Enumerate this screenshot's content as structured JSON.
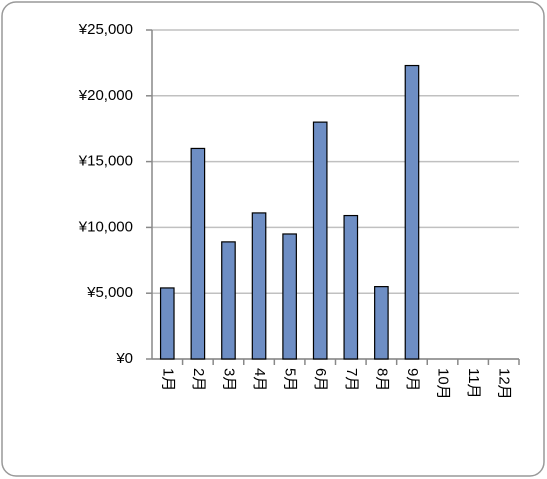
{
  "chart_data": {
    "type": "bar",
    "categories": [
      "1月",
      "2月",
      "3月",
      "4月",
      "5月",
      "6月",
      "7月",
      "8月",
      "9月",
      "10月",
      "11月",
      "12月"
    ],
    "values": [
      5400,
      16000,
      8900,
      11100,
      9500,
      18000,
      10900,
      5500,
      22300,
      null,
      null,
      null
    ],
    "color": "#6e8ec4",
    "ylim": [
      0,
      25000
    ],
    "yticks": [
      {
        "value": 0,
        "label": "¥0"
      },
      {
        "value": 5000,
        "label": "¥5,000"
      },
      {
        "value": 10000,
        "label": "¥10,000"
      },
      {
        "value": 15000,
        "label": "¥15,000"
      },
      {
        "value": 20000,
        "label": "¥20,000"
      },
      {
        "value": 25000,
        "label": "¥25,000"
      }
    ],
    "grid": true
  }
}
